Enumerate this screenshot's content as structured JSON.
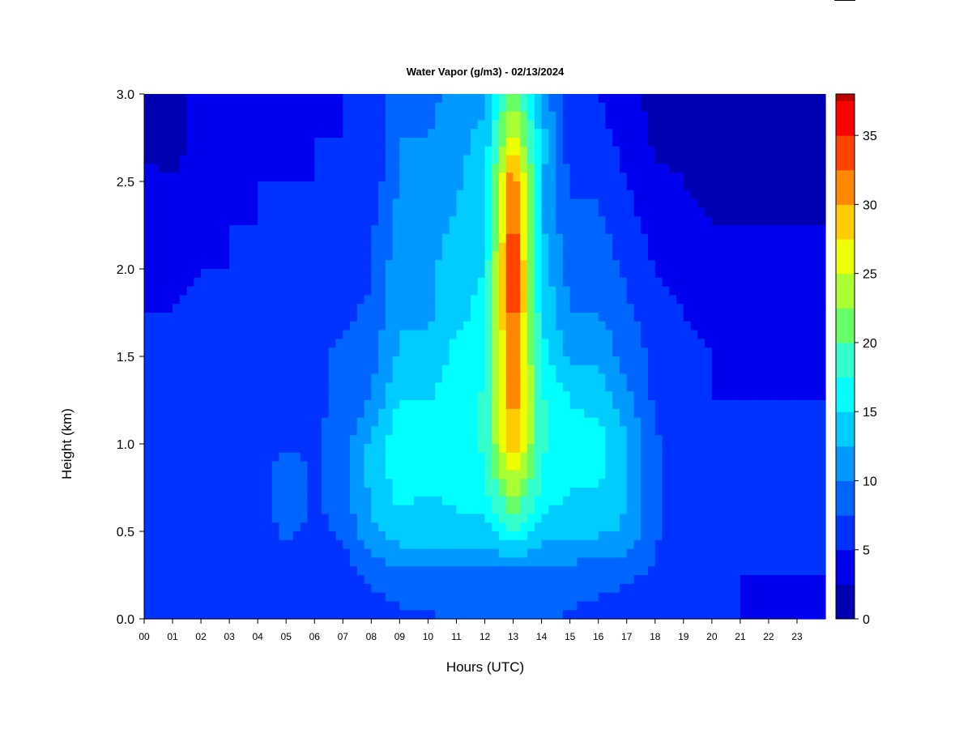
{
  "chart_data": {
    "type": "heatmap",
    "title": "Water Vapor (g/m3) - 02/13/2024",
    "xlabel": "Hours (UTC)",
    "ylabel": "Height (km)",
    "x_ticks": [
      "00",
      "01",
      "02",
      "03",
      "04",
      "05",
      "06",
      "07",
      "08",
      "09",
      "10",
      "11",
      "12",
      "13",
      "14",
      "15",
      "16",
      "17",
      "18",
      "19",
      "20",
      "21",
      "22",
      "23"
    ],
    "xlim": [
      0,
      24
    ],
    "ylim": [
      0.0,
      3.0
    ],
    "y_ticks": [
      "0.0",
      "0.5",
      "1.0",
      "1.5",
      "2.0",
      "2.5",
      "3.0"
    ],
    "y_tick_values": [
      0.0,
      0.5,
      1.0,
      1.5,
      2.0,
      2.5,
      3.0
    ],
    "colorbar": {
      "levels": [
        0,
        2.5,
        5,
        7.5,
        10,
        12.5,
        15,
        17.5,
        20,
        22.5,
        25,
        27.5,
        30,
        32.5,
        35,
        37.5
      ],
      "colors": [
        "#000080",
        "#0000b3",
        "#0000ee",
        "#0033ff",
        "#0066ff",
        "#0099ff",
        "#00ccff",
        "#00ffff",
        "#33ffcc",
        "#66ff66",
        "#aaff33",
        "#eeff00",
        "#ffcc00",
        "#ff8800",
        "#ff4400",
        "#ff0000",
        "#bb0000",
        "#800000"
      ],
      "tick_labels": [
        "0",
        "5",
        "10",
        "15",
        "20",
        "25",
        "30",
        "35"
      ],
      "tick_values": [
        0,
        5,
        10,
        15,
        20,
        25,
        30,
        35
      ],
      "max": 38
    },
    "hours": [
      0,
      1,
      2,
      3,
      4,
      5,
      6,
      7,
      8,
      9,
      10,
      11,
      12,
      13,
      14,
      15,
      16,
      17,
      18,
      19,
      20,
      21,
      22,
      23
    ],
    "heights_km": [
      0.0,
      0.25,
      0.5,
      0.75,
      1.0,
      1.25,
      1.5,
      1.75,
      2.0,
      2.25,
      2.5,
      2.75,
      3.0
    ],
    "values": [
      [
        5,
        5,
        5,
        5,
        5,
        5,
        5,
        5,
        5,
        4,
        3,
        2,
        2
      ],
      [
        5,
        5,
        5,
        5,
        5,
        5,
        5,
        5,
        4,
        3,
        2.5,
        2,
        2
      ],
      [
        5,
        5,
        6,
        6,
        6,
        6,
        6,
        6,
        5,
        4,
        3,
        3,
        3
      ],
      [
        5,
        5,
        6,
        6,
        6,
        6,
        6,
        6,
        5,
        5,
        4,
        3.5,
        3
      ],
      [
        5,
        5,
        6,
        6,
        7,
        7,
        7,
        6,
        6,
        5,
        5,
        4,
        3
      ],
      [
        5,
        6,
        8,
        10,
        7,
        7,
        7,
        6,
        6,
        6,
        5,
        4,
        4
      ],
      [
        5,
        6,
        7,
        7,
        7,
        7,
        7,
        6,
        6,
        6,
        5,
        5,
        4
      ],
      [
        5,
        6,
        8,
        9,
        9,
        8,
        8,
        7,
        7,
        6,
        5,
        5,
        5
      ],
      [
        6,
        8,
        12,
        13,
        13,
        10,
        9,
        8,
        7,
        7,
        6,
        5,
        5
      ],
      [
        7,
        9,
        14,
        16,
        17,
        15,
        13,
        12,
        12,
        11,
        10,
        10,
        10
      ],
      [
        7,
        9,
        14,
        15,
        16,
        15,
        13,
        12,
        12,
        11,
        10,
        10,
        9
      ],
      [
        8,
        9,
        14,
        16,
        16,
        16,
        16,
        14,
        14,
        13,
        12,
        12,
        11
      ],
      [
        8,
        9,
        14,
        17,
        18,
        18,
        17,
        16,
        15,
        14,
        14,
        13,
        12
      ],
      [
        8,
        9,
        18,
        24,
        30,
        32,
        33,
        35,
        36,
        35,
        33,
        27,
        22
      ],
      [
        8,
        9,
        14,
        17,
        18,
        18,
        16,
        15,
        14,
        13,
        13,
        14,
        12
      ],
      [
        7,
        9,
        13,
        15,
        16,
        15,
        12,
        10,
        9,
        8,
        7,
        6,
        5
      ],
      [
        7,
        8,
        13,
        15,
        16,
        14,
        12,
        10,
        9,
        8,
        7,
        6,
        5
      ],
      [
        6,
        8,
        12,
        13,
        13,
        11,
        9,
        8,
        7,
        6,
        5,
        4,
        3
      ],
      [
        6,
        7,
        8,
        8,
        8,
        7,
        7,
        6,
        5,
        4,
        3,
        2,
        2
      ],
      [
        5,
        6,
        6,
        6,
        6,
        6,
        6,
        5,
        4,
        3,
        2.5,
        2,
        2
      ],
      [
        5,
        5,
        5,
        5,
        5,
        5,
        5,
        4,
        3,
        2.5,
        2,
        2,
        2
      ],
      [
        5,
        5,
        5,
        5,
        5,
        5,
        4.5,
        4,
        3,
        2.5,
        2,
        2,
        2
      ],
      [
        4,
        5,
        5,
        5,
        5,
        5,
        4.5,
        3.5,
        2.5,
        2.5,
        2,
        2,
        2
      ],
      [
        4,
        5,
        5,
        5,
        5,
        5,
        4.5,
        3.5,
        2.5,
        2.5,
        2,
        2,
        2
      ]
    ]
  }
}
